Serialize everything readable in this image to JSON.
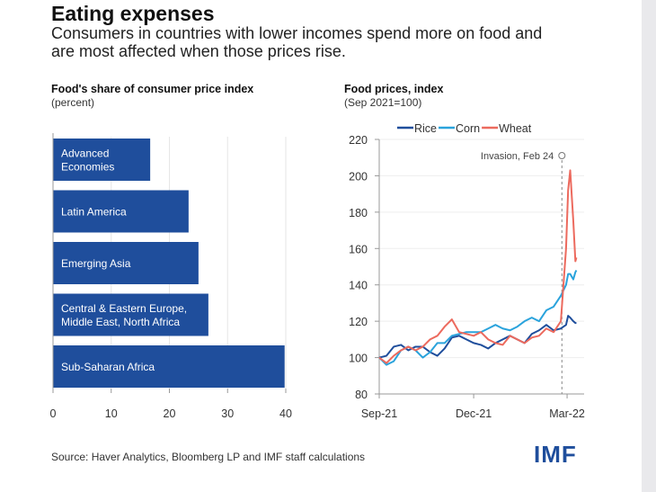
{
  "title": "Eating expenses",
  "subtitle": "Consumers in countries with lower incomes spend more on food and are most affected when those prices rise.",
  "source": "Source: Haver Analytics, Bloomberg LP and IMF staff calculations",
  "logo": "IMF",
  "chart_data": [
    {
      "type": "bar",
      "orientation": "horizontal",
      "title": "Food's share of consumer price index",
      "ylabel": "(percent)",
      "categories": [
        "Advanced Economies",
        "Latin America",
        "Emerging Asia",
        "Central & Eastern Europe, Middle East, North Africa",
        "Sub-Saharan Africa"
      ],
      "category_lines": [
        [
          "Advanced",
          "Economies"
        ],
        [
          "Latin America"
        ],
        [
          "Emerging Asia"
        ],
        [
          "Central & Eastern Europe,",
          "Middle East, North Africa"
        ],
        [
          "Sub-Saharan Africa"
        ]
      ],
      "values": [
        16.7,
        23.3,
        25,
        26.7,
        39.8
      ],
      "xlim": [
        0,
        40
      ],
      "xticks": [
        "0",
        "10",
        "20",
        "30",
        "40"
      ],
      "grid": true,
      "color": "#1f4e9c"
    },
    {
      "type": "line",
      "title": "Food prices, index",
      "ylabel": "(Sep 2021=100)",
      "ylim": [
        80,
        220
      ],
      "yticks": [
        "80",
        "100",
        "120",
        "140",
        "160",
        "180",
        "200",
        "220"
      ],
      "xticks": [
        {
          "label": "Sep-21",
          "date": "2021-09-01"
        },
        {
          "label": "Dec-21",
          "date": "2021-12-01"
        },
        {
          "label": "Mar-22",
          "date": "2022-03-01"
        }
      ],
      "legend_position": "top",
      "annotation": {
        "label": "Invasion, Feb 24",
        "date": "2022-02-24"
      },
      "x": [
        "2021-09-01",
        "2021-09-08",
        "2021-09-15",
        "2021-09-22",
        "2021-09-29",
        "2021-10-06",
        "2021-10-13",
        "2021-10-20",
        "2021-10-27",
        "2021-11-03",
        "2021-11-10",
        "2021-11-17",
        "2021-11-24",
        "2021-12-01",
        "2021-12-08",
        "2021-12-15",
        "2021-12-22",
        "2021-12-29",
        "2022-01-05",
        "2022-01-12",
        "2022-01-19",
        "2022-01-26",
        "2022-02-02",
        "2022-02-09",
        "2022-02-16",
        "2022-02-23",
        "2022-02-28",
        "2022-03-02",
        "2022-03-04",
        "2022-03-07",
        "2022-03-09",
        "2022-03-10"
      ],
      "series": [
        {
          "name": "Rice",
          "color": "#1f4e9c",
          "values": [
            100,
            101,
            106,
            107,
            104,
            106,
            106,
            103,
            101,
            105,
            111,
            112,
            110,
            108,
            107,
            105,
            108,
            110,
            112,
            110,
            108,
            113,
            115,
            118,
            115,
            116,
            118,
            123,
            122,
            120,
            119,
            119
          ]
        },
        {
          "name": "Corn",
          "color": "#2aa3dc",
          "values": [
            100,
            96,
            98,
            104,
            106,
            104,
            100,
            103,
            108,
            108,
            112,
            113,
            114,
            114,
            114,
            116,
            118,
            116,
            115,
            117,
            120,
            122,
            120,
            126,
            128,
            134,
            140,
            146,
            146,
            143,
            147,
            148
          ]
        },
        {
          "name": "Wheat",
          "color": "#ec6a5e",
          "values": [
            100,
            97,
            101,
            104,
            106,
            104,
            106,
            110,
            112,
            117,
            121,
            114,
            113,
            112,
            114,
            110,
            108,
            107,
            112,
            110,
            108,
            111,
            112,
            116,
            114,
            120,
            160,
            192,
            203,
            175,
            153,
            155
          ]
        }
      ]
    }
  ]
}
